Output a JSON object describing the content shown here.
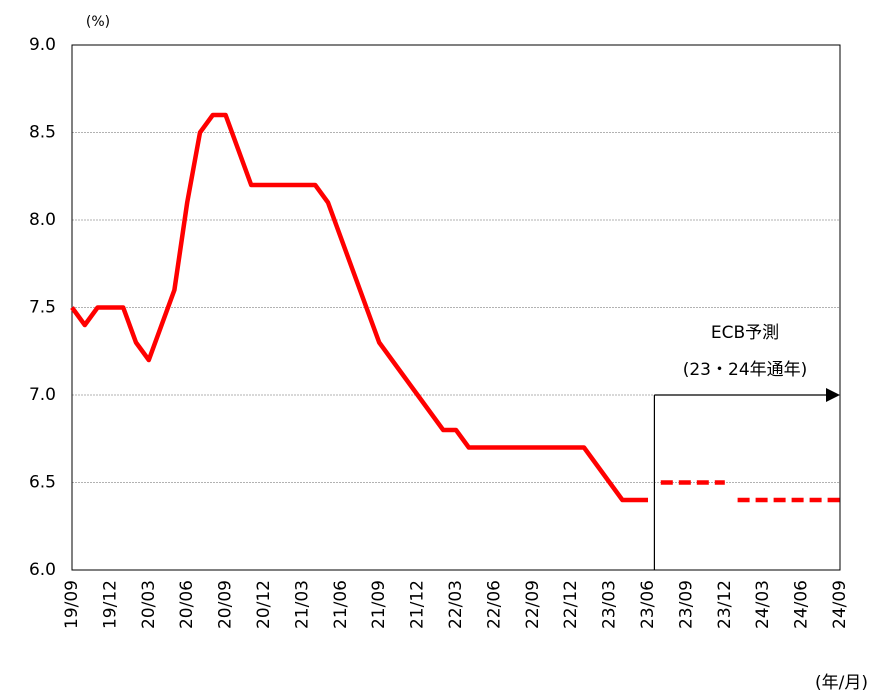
{
  "chart_data": {
    "type": "line",
    "y_unit_label": "(%)",
    "x_unit_label": "(年/月)",
    "annotation": [
      "ECB予測",
      "(23・24年通年)"
    ],
    "categories": [
      "19/09",
      null,
      null,
      "19/12",
      null,
      null,
      "20/03",
      null,
      null,
      "20/06",
      null,
      null,
      "20/09",
      null,
      null,
      "20/12",
      null,
      null,
      "21/03",
      null,
      null,
      "21/06",
      null,
      null,
      "21/09",
      null,
      null,
      "21/12",
      null,
      null,
      "22/03",
      null,
      null,
      "22/06",
      null,
      null,
      "22/09",
      null,
      null,
      "22/12",
      null,
      null,
      "23/03",
      null,
      null,
      "23/06",
      null,
      null,
      "23/09",
      null,
      null,
      "23/12",
      null,
      null,
      "24/03",
      null,
      null,
      "24/06",
      null,
      null,
      "24/09"
    ],
    "series": [
      {
        "color": "#ff0000",
        "dashed": false,
        "values": [
          7.5,
          7.4,
          7.5,
          7.5,
          7.5,
          7.3,
          7.2,
          7.4,
          7.6,
          8.1,
          8.5,
          8.6,
          8.6,
          8.4,
          8.2,
          8.2,
          8.2,
          8.2,
          8.2,
          8.2,
          8.1,
          7.9,
          7.7,
          7.5,
          7.3,
          7.2,
          7.1,
          7.0,
          6.9,
          6.8,
          6.8,
          6.7,
          6.7,
          6.7,
          6.7,
          6.7,
          6.7,
          6.7,
          6.7,
          6.7,
          6.7,
          6.6,
          6.5,
          6.4,
          6.4,
          6.4,
          null,
          null,
          null,
          null,
          null,
          null,
          null,
          null,
          null,
          null,
          null,
          null,
          null,
          null,
          null
        ]
      },
      {
        "color": "#ff0000",
        "dashed": true,
        "values": [
          null,
          null,
          null,
          null,
          null,
          null,
          null,
          null,
          null,
          null,
          null,
          null,
          null,
          null,
          null,
          null,
          null,
          null,
          null,
          null,
          null,
          null,
          null,
          null,
          null,
          null,
          null,
          null,
          null,
          null,
          null,
          null,
          null,
          null,
          null,
          null,
          null,
          null,
          null,
          null,
          null,
          null,
          null,
          null,
          null,
          null,
          6.5,
          6.5,
          6.5,
          6.5,
          6.5,
          6.5,
          null,
          null,
          null,
          null,
          null,
          null,
          null,
          null,
          null
        ]
      },
      {
        "color": "#ff0000",
        "dashed": true,
        "values": [
          null,
          null,
          null,
          null,
          null,
          null,
          null,
          null,
          null,
          null,
          null,
          null,
          null,
          null,
          null,
          null,
          null,
          null,
          null,
          null,
          null,
          null,
          null,
          null,
          null,
          null,
          null,
          null,
          null,
          null,
          null,
          null,
          null,
          null,
          null,
          null,
          null,
          null,
          null,
          null,
          null,
          null,
          null,
          null,
          null,
          null,
          null,
          null,
          null,
          null,
          null,
          null,
          6.4,
          6.4,
          6.4,
          6.4,
          6.4,
          6.4,
          6.4,
          6.4,
          6.4
        ]
      }
    ],
    "ylim": [
      6,
      9
    ],
    "yticks": [
      {
        "value": 6,
        "label": "6.0"
      },
      6.5,
      {
        "value": 7,
        "label": "7.0"
      },
      7.5,
      {
        "value": 8,
        "label": "8.0"
      },
      8.5,
      {
        "value": 9,
        "label": "9.0"
      }
    ],
    "grid": true
  }
}
